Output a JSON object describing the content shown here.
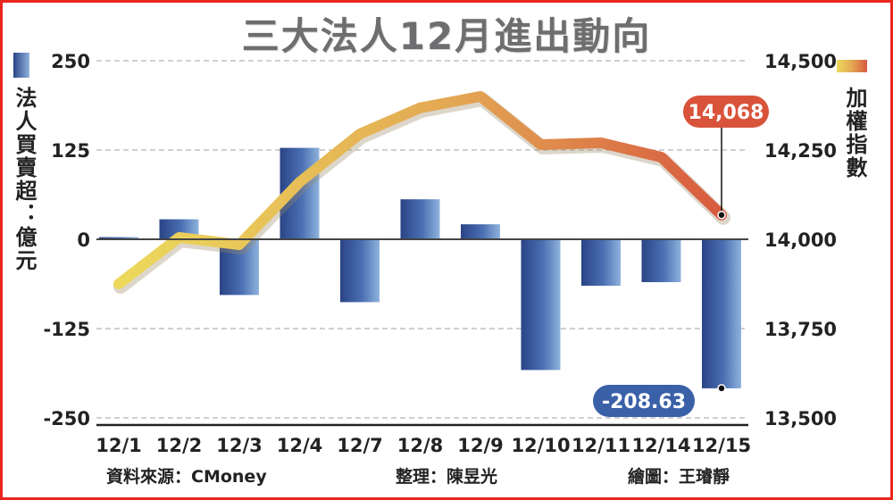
{
  "title": "三大法人12月進出動向",
  "left_axis_label": "法人買賣超：億元",
  "right_axis_label": "加權指數",
  "footer": {
    "source": "資料來源：CMoney",
    "editor": "整理：陳昱光",
    "illustrator": "繪圖：王璿靜"
  },
  "chart_data": {
    "type": "bar+line",
    "categories": [
      "12/1",
      "12/2",
      "12/3",
      "12/4",
      "12/7",
      "12/8",
      "12/9",
      "12/10",
      "12/11",
      "12/14",
      "12/15"
    ],
    "bars": {
      "name": "法人買賣超",
      "values": [
        3,
        28,
        -78,
        128,
        -88,
        56,
        21,
        -183,
        -65,
        -60,
        -208.63
      ],
      "ylim": [
        -250,
        250
      ],
      "ticks": [
        "250",
        "125",
        "0",
        "-125",
        "-250"
      ],
      "tick_values": [
        250,
        125,
        0,
        -125,
        -250
      ]
    },
    "line": {
      "name": "加權指數",
      "values": [
        13875,
        14005,
        13985,
        14160,
        14295,
        14368,
        14400,
        14265,
        14270,
        14230,
        14068
      ],
      "ylim": [
        13500,
        14500
      ],
      "ticks": [
        "14,500",
        "14,250",
        "14,000",
        "13,750",
        "13,500"
      ],
      "tick_values": [
        14500,
        14250,
        14000,
        13750,
        13500
      ]
    },
    "annotations": {
      "line_last": "14,068",
      "bar_last": "-208.63"
    },
    "grid": true
  },
  "colors": {
    "frame": "#e8271f",
    "bar_dark": "#2a4486",
    "bar_light": "#8fb3dd",
    "line_start": "#ecd95c",
    "line_mid": "#e3a853",
    "line_end": "#d85a3f",
    "annot_red": "#d9533a",
    "annot_blue": "#3a61a8"
  }
}
